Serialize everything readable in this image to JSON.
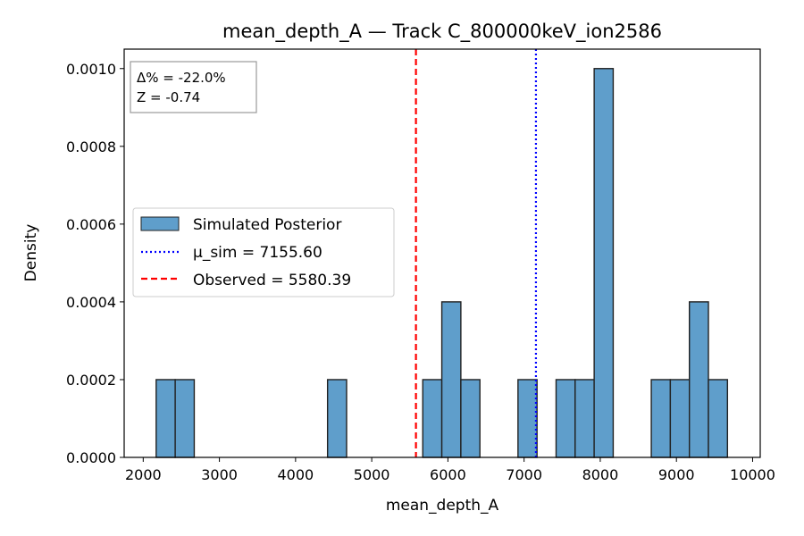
{
  "chart_data": {
    "type": "bar",
    "title": "mean_depth_A — Track C_800000keV_ion2586",
    "xlabel": "mean_depth_A",
    "ylabel": "Density",
    "xlim": [
      1750,
      10100
    ],
    "ylim": [
      0,
      0.00105
    ],
    "x_ticks": [
      2000,
      3000,
      4000,
      5000,
      6000,
      7000,
      8000,
      9000,
      10000
    ],
    "x_tick_labels": [
      "2000",
      "3000",
      "4000",
      "5000",
      "6000",
      "7000",
      "8000",
      "9000",
      "10000"
    ],
    "y_ticks": [
      0,
      0.0002,
      0.0004,
      0.0006,
      0.0008,
      0.001
    ],
    "y_tick_labels": [
      "0.0000",
      "0.0002",
      "0.0004",
      "0.0006",
      "0.0008",
      "0.0010"
    ],
    "bin_width": 250,
    "bins": [
      {
        "x": 2170,
        "density": 0.0002
      },
      {
        "x": 2420,
        "density": 0.0002
      },
      {
        "x": 4420,
        "density": 0.0002
      },
      {
        "x": 5670,
        "density": 0.0002
      },
      {
        "x": 5920,
        "density": 0.0004
      },
      {
        "x": 6170,
        "density": 0.0002
      },
      {
        "x": 6920,
        "density": 0.0002
      },
      {
        "x": 7420,
        "density": 0.0002
      },
      {
        "x": 7670,
        "density": 0.0002
      },
      {
        "x": 7920,
        "density": 0.001
      },
      {
        "x": 8670,
        "density": 0.0002
      },
      {
        "x": 8920,
        "density": 0.0002
      },
      {
        "x": 9170,
        "density": 0.0004
      },
      {
        "x": 9420,
        "density": 0.0002
      }
    ],
    "bar_color": "#5f9ecb",
    "vlines": [
      {
        "x": 7155.6,
        "color": "#0000ff",
        "style": "dotted"
      },
      {
        "x": 5580.39,
        "color": "#ff0000",
        "style": "dashed"
      }
    ],
    "legend": {
      "placement": "center-left",
      "entries": [
        {
          "label": "Simulated Posterior",
          "kind": "patch",
          "color": "#5f9ecb"
        },
        {
          "label": "μ_sim = 7155.60",
          "kind": "line",
          "color": "#0000ff",
          "style": "dotted"
        },
        {
          "label": "Observed = 5580.39",
          "kind": "line",
          "color": "#ff0000",
          "style": "dashed"
        }
      ]
    },
    "annotation": {
      "placement": "top-left",
      "lines": [
        "Δ% = -22.0%",
        "Z = -0.74"
      ]
    },
    "grid": false
  }
}
